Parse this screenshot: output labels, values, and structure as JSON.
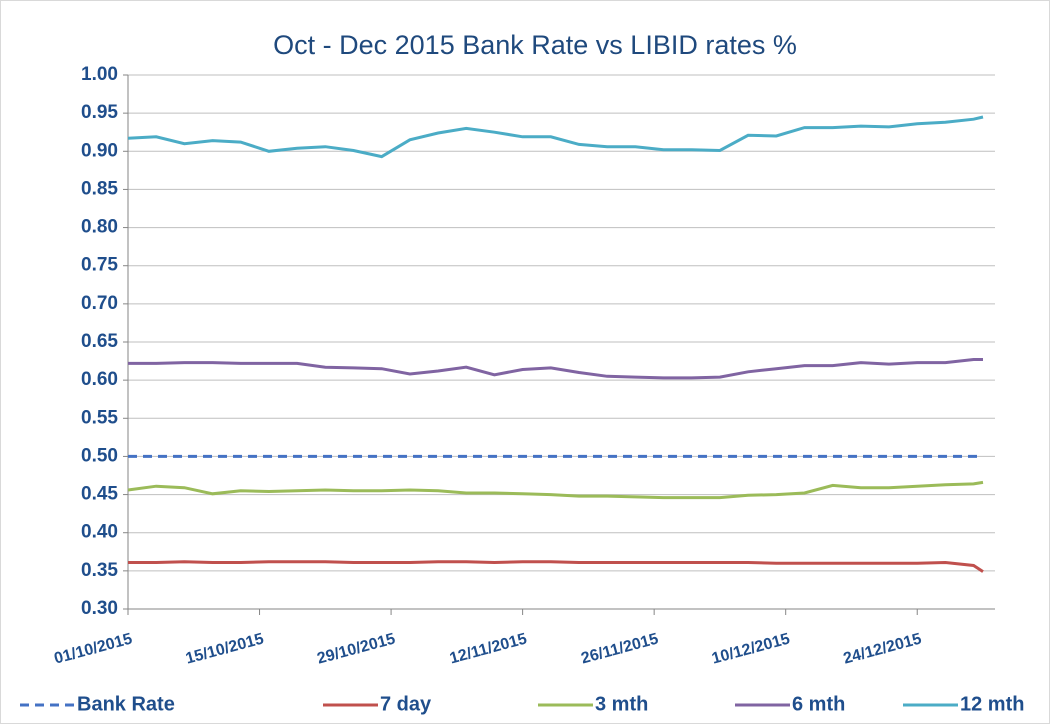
{
  "chart_data": {
    "type": "line",
    "title": "Oct - Dec 2015 Bank Rate vs LIBID rates %",
    "x": [
      "01/10/2015",
      "04/10/2015",
      "07/10/2015",
      "10/10/2015",
      "13/10/2015",
      "16/10/2015",
      "19/10/2015",
      "22/10/2015",
      "25/10/2015",
      "28/10/2015",
      "31/10/2015",
      "03/11/2015",
      "06/11/2015",
      "09/11/2015",
      "12/11/2015",
      "15/11/2015",
      "18/11/2015",
      "21/11/2015",
      "24/11/2015",
      "27/11/2015",
      "30/11/2015",
      "03/12/2015",
      "06/12/2015",
      "09/12/2015",
      "12/12/2015",
      "15/12/2015",
      "18/12/2015",
      "21/12/2015",
      "24/12/2015",
      "27/12/2015",
      "30/12/2015",
      "31/12/2015"
    ],
    "xlim": [
      "01/10/2015",
      "31/12/2015"
    ],
    "xticks": [
      "01/10/2015",
      "15/10/2015",
      "29/10/2015",
      "12/11/2015",
      "26/11/2015",
      "10/12/2015",
      "24/12/2015"
    ],
    "ylim": [
      0.3,
      1.0
    ],
    "yticks": [
      {
        "value": 0.3,
        "label": "0.30"
      },
      {
        "value": 0.35,
        "label": "0.35"
      },
      {
        "value": 0.4,
        "label": "0.40"
      },
      {
        "value": 0.45,
        "label": "0.45"
      },
      {
        "value": 0.5,
        "label": "0.50"
      },
      {
        "value": 0.55,
        "label": "0.55"
      },
      {
        "value": 0.6,
        "label": "0.60"
      },
      {
        "value": 0.65,
        "label": "0.65"
      },
      {
        "value": 0.7,
        "label": "0.70"
      },
      {
        "value": 0.75,
        "label": "0.75"
      },
      {
        "value": 0.8,
        "label": "0.80"
      },
      {
        "value": 0.85,
        "label": "0.85"
      },
      {
        "value": 0.9,
        "label": "0.90"
      },
      {
        "value": 0.95,
        "label": "0.95"
      },
      {
        "value": 1.0,
        "label": "1.00"
      }
    ],
    "grid": true,
    "legend": "bottom",
    "series": [
      {
        "name": "Bank Rate",
        "color": "#4472c4",
        "dashed": true,
        "values": [
          0.5,
          0.5,
          0.5,
          0.5,
          0.5,
          0.5,
          0.5,
          0.5,
          0.5,
          0.5,
          0.5,
          0.5,
          0.5,
          0.5,
          0.5,
          0.5,
          0.5,
          0.5,
          0.5,
          0.5,
          0.5,
          0.5,
          0.5,
          0.5,
          0.5,
          0.5,
          0.5,
          0.5,
          0.5,
          0.5,
          0.5,
          0.5
        ]
      },
      {
        "name": "7 day",
        "color": "#c0504d",
        "values": [
          0.361,
          0.361,
          0.362,
          0.361,
          0.361,
          0.362,
          0.362,
          0.362,
          0.361,
          0.361,
          0.361,
          0.362,
          0.362,
          0.361,
          0.362,
          0.362,
          0.361,
          0.361,
          0.361,
          0.361,
          0.361,
          0.361,
          0.361,
          0.36,
          0.36,
          0.36,
          0.36,
          0.36,
          0.36,
          0.361,
          0.357,
          0.349
        ]
      },
      {
        "name": "3 mth",
        "color": "#9bbb59",
        "values": [
          0.456,
          0.461,
          0.459,
          0.451,
          0.455,
          0.454,
          0.455,
          0.456,
          0.455,
          0.455,
          0.456,
          0.455,
          0.452,
          0.452,
          0.451,
          0.45,
          0.448,
          0.448,
          0.447,
          0.446,
          0.446,
          0.446,
          0.449,
          0.45,
          0.452,
          0.462,
          0.459,
          0.459,
          0.461,
          0.463,
          0.464,
          0.466
        ]
      },
      {
        "name": "6 mth",
        "color": "#8064a2",
        "values": [
          0.622,
          0.622,
          0.623,
          0.623,
          0.622,
          0.622,
          0.622,
          0.617,
          0.616,
          0.615,
          0.608,
          0.612,
          0.617,
          0.607,
          0.614,
          0.616,
          0.61,
          0.605,
          0.604,
          0.603,
          0.603,
          0.604,
          0.611,
          0.615,
          0.619,
          0.619,
          0.623,
          0.621,
          0.623,
          0.623,
          0.627,
          0.627
        ]
      },
      {
        "name": "12 mth",
        "color": "#4bacc6",
        "values": [
          0.917,
          0.919,
          0.91,
          0.914,
          0.912,
          0.9,
          0.904,
          0.906,
          0.901,
          0.893,
          0.915,
          0.924,
          0.93,
          0.925,
          0.919,
          0.919,
          0.909,
          0.906,
          0.906,
          0.902,
          0.902,
          0.901,
          0.921,
          0.92,
          0.931,
          0.931,
          0.933,
          0.932,
          0.936,
          0.938,
          0.942,
          0.945
        ]
      }
    ]
  }
}
